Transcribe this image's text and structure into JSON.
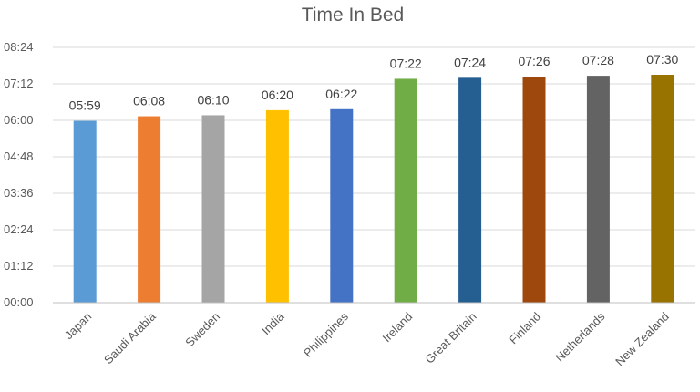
{
  "chart_data": {
    "type": "bar",
    "title": "Time In Bed",
    "xlabel": "",
    "ylabel": "",
    "categories": [
      "Japan",
      "Saudi Arabia",
      "Sweden",
      "India",
      "Philippines",
      "Ireland",
      "Great Britain",
      "Finland",
      "Netherlands",
      "New Zealand"
    ],
    "values": [
      "05:59",
      "06:08",
      "06:10",
      "06:20",
      "06:22",
      "07:22",
      "07:24",
      "07:26",
      "07:28",
      "07:30"
    ],
    "data_labels": [
      "05:59",
      "06:08",
      "06:10",
      "06:20",
      "06:22",
      "07:22",
      "07:24",
      "07:26",
      "07:28",
      "07:30"
    ],
    "bar_colors": [
      "#5b9bd5",
      "#ed7d31",
      "#a5a5a5",
      "#ffc000",
      "#4472c4",
      "#70ad47",
      "#255e91",
      "#9e480e",
      "#636363",
      "#997300"
    ],
    "yticks": [
      "00:00",
      "01:12",
      "02:24",
      "03:36",
      "04:48",
      "06:00",
      "07:12",
      "08:24"
    ],
    "ylim": [
      "00:00",
      "08:24"
    ],
    "grid": true,
    "legend": "none"
  }
}
